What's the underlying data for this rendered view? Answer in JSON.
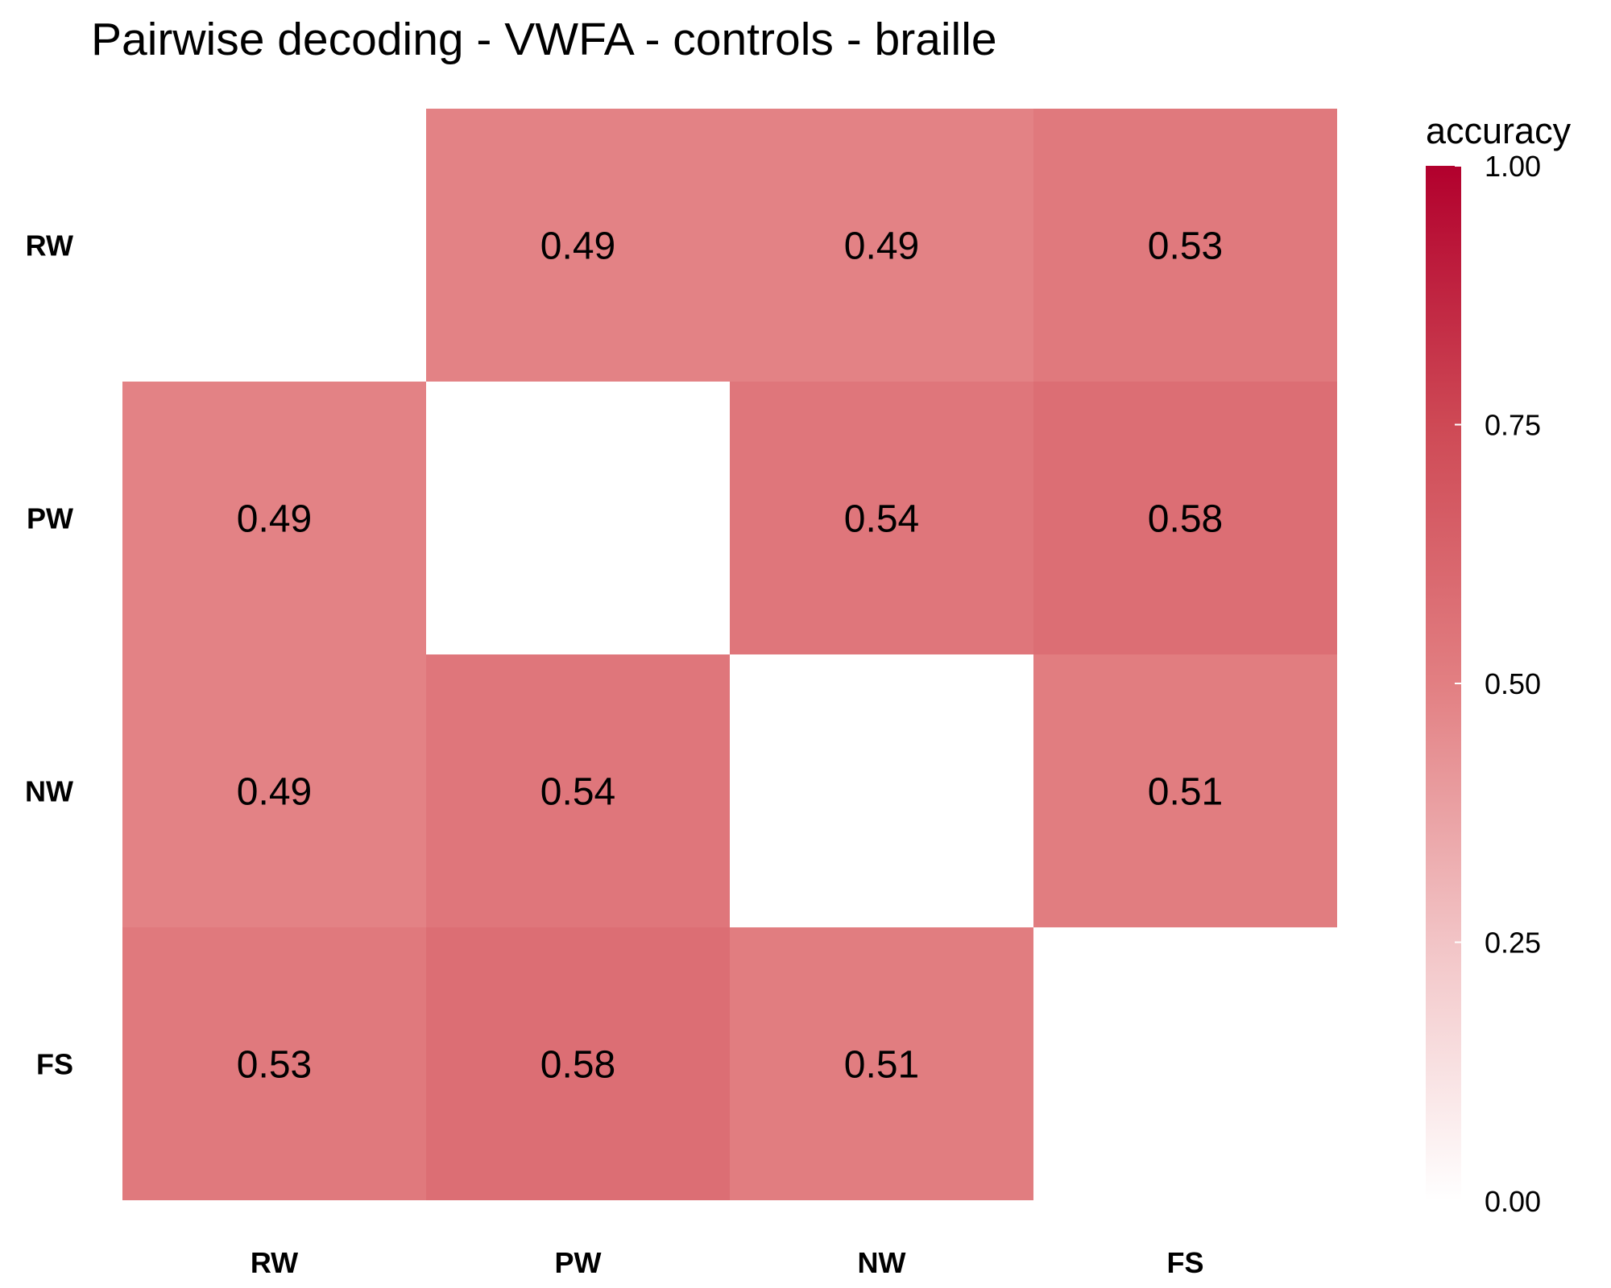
{
  "chart_data": {
    "type": "heatmap",
    "title": "Pairwise decoding - VWFA - controls - braille",
    "x_categories": [
      "RW",
      "PW",
      "NW",
      "FS"
    ],
    "y_categories": [
      "RW",
      "PW",
      "NW",
      "FS"
    ],
    "cells": [
      {
        "row": "RW",
        "col": "PW",
        "value": 0.49,
        "label": "0.49"
      },
      {
        "row": "RW",
        "col": "NW",
        "value": 0.49,
        "label": "0.49"
      },
      {
        "row": "RW",
        "col": "FS",
        "value": 0.53,
        "label": "0.53"
      },
      {
        "row": "PW",
        "col": "RW",
        "value": 0.49,
        "label": "0.49"
      },
      {
        "row": "PW",
        "col": "NW",
        "value": 0.54,
        "label": "0.54"
      },
      {
        "row": "PW",
        "col": "FS",
        "value": 0.58,
        "label": "0.58"
      },
      {
        "row": "NW",
        "col": "RW",
        "value": 0.49,
        "label": "0.49"
      },
      {
        "row": "NW",
        "col": "PW",
        "value": 0.54,
        "label": "0.54"
      },
      {
        "row": "NW",
        "col": "FS",
        "value": 0.51,
        "label": "0.51"
      },
      {
        "row": "FS",
        "col": "RW",
        "value": 0.53,
        "label": "0.53"
      },
      {
        "row": "FS",
        "col": "PW",
        "value": 0.58,
        "label": "0.58"
      },
      {
        "row": "FS",
        "col": "NW",
        "value": 0.51,
        "label": "0.51"
      }
    ],
    "legend": {
      "title": "accuracy",
      "range": [
        0,
        1
      ],
      "ticks": [
        "1.00",
        "0.75",
        "0.50",
        "0.25",
        "0.00"
      ],
      "tick_values": [
        1.0,
        0.75,
        0.5,
        0.25,
        0.0
      ],
      "color_low": "#ffffff",
      "color_high": "#b2002d",
      "position": "right"
    },
    "grid": false
  }
}
